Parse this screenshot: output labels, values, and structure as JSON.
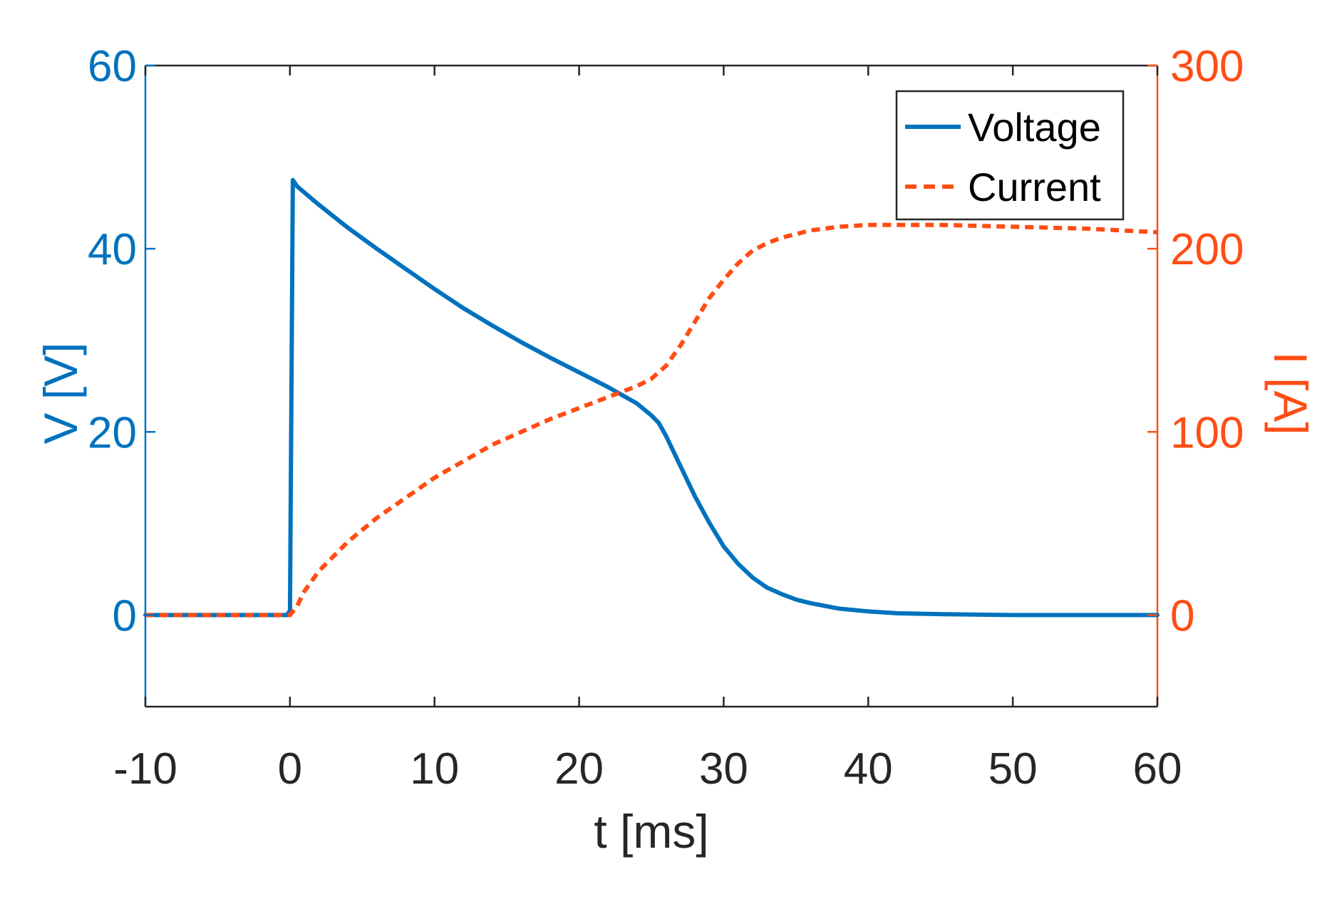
{
  "chart_data": {
    "type": "line",
    "title": "",
    "xlabel": "t [ms]",
    "ylabel_left": "V [V]",
    "ylabel_right": "I [A]",
    "xlim": [
      -10,
      60
    ],
    "ylim_left": [
      -10,
      60
    ],
    "ylim_right": [
      -50,
      300
    ],
    "x_ticks": [
      -10,
      0,
      10,
      20,
      30,
      40,
      50,
      60
    ],
    "x_tick_labels": [
      "-10",
      "0",
      "10",
      "20",
      "30",
      "40",
      "50",
      "60"
    ],
    "y_left_ticks": [
      0,
      20,
      40,
      60
    ],
    "y_left_tick_labels": [
      "0",
      "20",
      "40",
      "60"
    ],
    "y_right_ticks": [
      0,
      100,
      200,
      300
    ],
    "y_right_tick_labels": [
      "0",
      "100",
      "200",
      "300"
    ],
    "grid": false,
    "legend": {
      "position": "top-right",
      "entries": [
        "Voltage",
        "Current"
      ]
    },
    "colors": {
      "voltage": "#0072BD",
      "current": "#FF4D14",
      "axis_x": "#262626",
      "frame": "#262626"
    },
    "series": [
      {
        "name": "Voltage",
        "axis": "left",
        "style": "solid",
        "x": [
          -10,
          -5,
          -0.2,
          0,
          0.2,
          0.5,
          2,
          4,
          6,
          8,
          10,
          12,
          14,
          16,
          18,
          20,
          22,
          24,
          25,
          25.5,
          26,
          27,
          28,
          29,
          30,
          31,
          32,
          33,
          34,
          35,
          36,
          38,
          40,
          42,
          45,
          50,
          55,
          60
        ],
        "y": [
          0,
          0,
          0,
          0.5,
          47.5,
          46.8,
          44.8,
          42.3,
          40,
          37.8,
          35.6,
          33.5,
          31.6,
          29.8,
          28.1,
          26.5,
          24.9,
          23.1,
          21.8,
          21,
          19.6,
          16.3,
          13,
          10.1,
          7.5,
          5.6,
          4.1,
          3,
          2.3,
          1.7,
          1.3,
          0.7,
          0.4,
          0.2,
          0.1,
          0,
          0,
          0
        ]
      },
      {
        "name": "Current",
        "axis": "right",
        "style": "dashed",
        "x": [
          -10,
          -5,
          0,
          0.5,
          1,
          2,
          4,
          6,
          8,
          10,
          12,
          14,
          16,
          18,
          20,
          22,
          24,
          25,
          26,
          27,
          28,
          29,
          30,
          31,
          32,
          33,
          34,
          35,
          36,
          38,
          40,
          42,
          45,
          50,
          55,
          60
        ],
        "y": [
          0,
          0,
          0,
          5,
          13,
          24,
          40,
          53,
          64,
          75,
          84,
          93,
          100,
          107,
          113,
          119,
          125,
          129,
          136,
          147,
          160,
          173,
          183,
          192,
          199,
          203,
          206,
          208,
          210,
          212,
          213,
          213,
          213,
          212,
          211,
          209
        ]
      }
    ]
  }
}
